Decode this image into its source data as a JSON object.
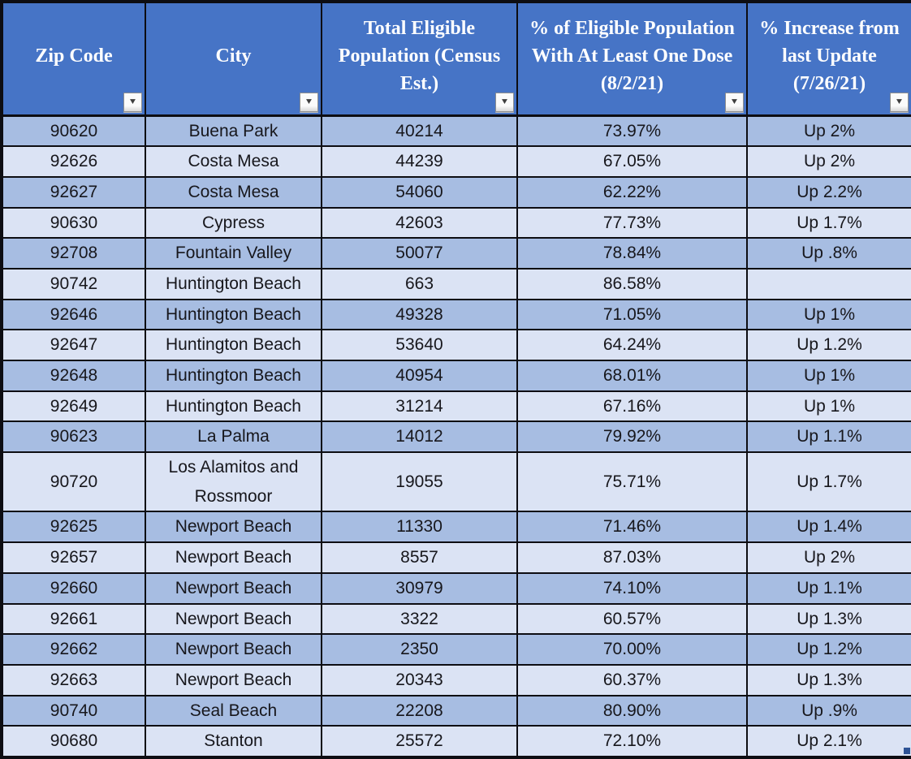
{
  "colors": {
    "header_bg": "#4674C6",
    "row_dark": "#A7BDE2",
    "row_light": "#DBE3F4",
    "border": "#0d0d12",
    "header_text": "#FFFFFF",
    "body_text": "#17171c",
    "fill_handle": "#2E5395"
  },
  "icons": {
    "filter_dropdown": "▼"
  },
  "table": {
    "columns": [
      {
        "key": "zip",
        "label": "Zip Code"
      },
      {
        "key": "city",
        "label": "City"
      },
      {
        "key": "population",
        "label": "Total Eligible Population (Census Est.)"
      },
      {
        "key": "pct_one_dose",
        "label": "% of Eligible Population With At Least One Dose (8/2/21)"
      },
      {
        "key": "pct_increase",
        "label": "% Increase from last Update (7/26/21)"
      }
    ],
    "rows": [
      {
        "zip": "90620",
        "city": "Buena Park",
        "population": "40214",
        "pct_one_dose": "73.97%",
        "pct_increase": "Up 2%"
      },
      {
        "zip": "92626",
        "city": "Costa Mesa",
        "population": "44239",
        "pct_one_dose": "67.05%",
        "pct_increase": "Up 2%"
      },
      {
        "zip": "92627",
        "city": "Costa Mesa",
        "population": "54060",
        "pct_one_dose": "62.22%",
        "pct_increase": "Up 2.2%"
      },
      {
        "zip": "90630",
        "city": "Cypress",
        "population": "42603",
        "pct_one_dose": "77.73%",
        "pct_increase": "Up 1.7%"
      },
      {
        "zip": "92708",
        "city": "Fountain Valley",
        "population": "50077",
        "pct_one_dose": "78.84%",
        "pct_increase": "Up .8%"
      },
      {
        "zip": "90742",
        "city": "Huntington Beach",
        "population": "663",
        "pct_one_dose": "86.58%",
        "pct_increase": ""
      },
      {
        "zip": "92646",
        "city": "Huntington Beach",
        "population": "49328",
        "pct_one_dose": "71.05%",
        "pct_increase": "Up 1%"
      },
      {
        "zip": "92647",
        "city": "Huntington Beach",
        "population": "53640",
        "pct_one_dose": "64.24%",
        "pct_increase": "Up 1.2%"
      },
      {
        "zip": "92648",
        "city": "Huntington Beach",
        "population": "40954",
        "pct_one_dose": "68.01%",
        "pct_increase": "Up 1%"
      },
      {
        "zip": "92649",
        "city": "Huntington Beach",
        "population": "31214",
        "pct_one_dose": "67.16%",
        "pct_increase": "Up 1%"
      },
      {
        "zip": "90623",
        "city": "La Palma",
        "population": "14012",
        "pct_one_dose": "79.92%",
        "pct_increase": "Up 1.1%"
      },
      {
        "zip": "90720",
        "city": "Los Alamitos and Rossmoor",
        "population": "19055",
        "pct_one_dose": "75.71%",
        "pct_increase": "Up 1.7%"
      },
      {
        "zip": "92625",
        "city": "Newport Beach",
        "population": "11330",
        "pct_one_dose": "71.46%",
        "pct_increase": "Up 1.4%"
      },
      {
        "zip": "92657",
        "city": "Newport Beach",
        "population": "8557",
        "pct_one_dose": "87.03%",
        "pct_increase": "Up 2%"
      },
      {
        "zip": "92660",
        "city": "Newport Beach",
        "population": "30979",
        "pct_one_dose": "74.10%",
        "pct_increase": "Up 1.1%"
      },
      {
        "zip": "92661",
        "city": "Newport Beach",
        "population": "3322",
        "pct_one_dose": "60.57%",
        "pct_increase": "Up 1.3%"
      },
      {
        "zip": "92662",
        "city": "Newport Beach",
        "population": "2350",
        "pct_one_dose": "70.00%",
        "pct_increase": "Up 1.2%"
      },
      {
        "zip": "92663",
        "city": "Newport Beach",
        "population": "20343",
        "pct_one_dose": "60.37%",
        "pct_increase": "Up 1.3%"
      },
      {
        "zip": "90740",
        "city": "Seal Beach",
        "population": "22208",
        "pct_one_dose": "80.90%",
        "pct_increase": "Up .9%"
      },
      {
        "zip": "90680",
        "city": "Stanton",
        "population": "25572",
        "pct_one_dose": "72.10%",
        "pct_increase": "Up 2.1%"
      }
    ]
  }
}
